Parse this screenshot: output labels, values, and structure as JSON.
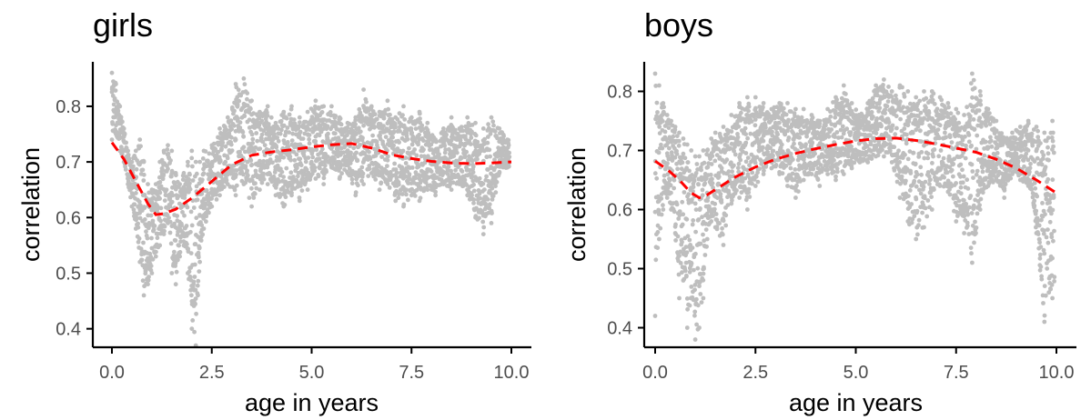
{
  "chart_data": [
    {
      "type": "scatter",
      "title": "girls",
      "xlabel": "age in years",
      "ylabel": "correlation",
      "xlim": [
        -0.5,
        10.5
      ],
      "ylim": [
        0.37,
        0.88
      ],
      "xticks": [
        "0.0",
        "2.5",
        "5.0",
        "7.5",
        "10.0"
      ],
      "xtick_values": [
        0,
        2.5,
        5,
        7.5,
        10
      ],
      "yticks": [
        "0.4",
        "0.5",
        "0.6",
        "0.7",
        "0.8"
      ],
      "ytick_values": [
        0.4,
        0.5,
        0.6,
        0.7,
        0.8
      ],
      "point_color": "#bebebe",
      "trend_color": "#ff0000",
      "trend_style": "dashed",
      "trend": {
        "x": [
          0,
          0.3,
          0.6,
          0.9,
          1.1,
          1.3,
          1.6,
          2.0,
          2.5,
          3.0,
          3.5,
          4.0,
          4.5,
          5.0,
          5.5,
          6.0,
          6.5,
          7.0,
          7.5,
          8.0,
          8.5,
          9.0,
          9.5,
          10.0
        ],
        "y": [
          0.735,
          0.705,
          0.665,
          0.625,
          0.605,
          0.607,
          0.615,
          0.635,
          0.665,
          0.695,
          0.712,
          0.718,
          0.722,
          0.727,
          0.731,
          0.733,
          0.725,
          0.713,
          0.706,
          0.701,
          0.698,
          0.697,
          0.698,
          0.7
        ]
      },
      "envelope": {
        "x": [
          0,
          0.1,
          0.2,
          0.3,
          0.4,
          0.5,
          0.6,
          0.7,
          0.8,
          0.9,
          1.0,
          1.1,
          1.2,
          1.3,
          1.4,
          1.5,
          1.6,
          1.7,
          1.8,
          1.9,
          2.0,
          2.1,
          2.2,
          2.3,
          2.5,
          2.7,
          2.9,
          3.1,
          3.3,
          3.5,
          3.7,
          3.9,
          4.1,
          4.3,
          4.5,
          4.7,
          4.9,
          5.1,
          5.3,
          5.5,
          5.7,
          5.9,
          6.1,
          6.3,
          6.5,
          6.7,
          6.9,
          7.1,
          7.3,
          7.5,
          7.7,
          7.9,
          8.1,
          8.3,
          8.5,
          8.7,
          8.9,
          9.1,
          9.3,
          9.5,
          9.7,
          9.9
        ],
        "low": [
          0.74,
          0.75,
          0.72,
          0.7,
          0.66,
          0.62,
          0.58,
          0.52,
          0.46,
          0.48,
          0.5,
          0.53,
          0.55,
          0.57,
          0.59,
          0.5,
          0.48,
          0.53,
          0.55,
          0.5,
          0.4,
          0.37,
          0.52,
          0.58,
          0.62,
          0.64,
          0.66,
          0.64,
          0.66,
          0.62,
          0.65,
          0.66,
          0.64,
          0.62,
          0.64,
          0.63,
          0.65,
          0.67,
          0.66,
          0.69,
          0.67,
          0.68,
          0.64,
          0.66,
          0.68,
          0.65,
          0.66,
          0.63,
          0.62,
          0.64,
          0.63,
          0.65,
          0.64,
          0.66,
          0.65,
          0.66,
          0.64,
          0.6,
          0.57,
          0.59,
          0.68,
          0.69
        ],
        "high": [
          0.86,
          0.84,
          0.8,
          0.76,
          0.72,
          0.7,
          0.72,
          0.74,
          0.7,
          0.66,
          0.65,
          0.66,
          0.7,
          0.72,
          0.73,
          0.72,
          0.68,
          0.66,
          0.68,
          0.7,
          0.72,
          0.7,
          0.7,
          0.72,
          0.73,
          0.76,
          0.78,
          0.84,
          0.85,
          0.81,
          0.79,
          0.8,
          0.77,
          0.79,
          0.8,
          0.78,
          0.79,
          0.81,
          0.8,
          0.8,
          0.78,
          0.77,
          0.78,
          0.83,
          0.8,
          0.79,
          0.81,
          0.78,
          0.8,
          0.78,
          0.79,
          0.77,
          0.74,
          0.76,
          0.78,
          0.76,
          0.78,
          0.77,
          0.76,
          0.78,
          0.76,
          0.74
        ]
      }
    },
    {
      "type": "scatter",
      "title": "boys",
      "xlabel": "age in years",
      "ylabel": "correlation",
      "xlim": [
        -0.5,
        10.5
      ],
      "ylim": [
        0.37,
        0.85
      ],
      "xticks": [
        "0.0",
        "2.5",
        "5.0",
        "7.5",
        "10.0"
      ],
      "xtick_values": [
        0,
        2.5,
        5,
        7.5,
        10
      ],
      "yticks": [
        "0.4",
        "0.5",
        "0.6",
        "0.7",
        "0.8"
      ],
      "ytick_values": [
        0.4,
        0.5,
        0.6,
        0.7,
        0.8
      ],
      "point_color": "#bebebe",
      "trend_color": "#ff0000",
      "trend_style": "dashed",
      "trend": {
        "x": [
          0,
          0.3,
          0.6,
          0.9,
          1.1,
          1.3,
          1.6,
          2.0,
          2.5,
          3.0,
          3.5,
          4.0,
          4.5,
          5.0,
          5.5,
          6.0,
          6.5,
          7.0,
          7.5,
          8.0,
          8.5,
          9.0,
          9.5,
          10.0
        ],
        "y": [
          0.682,
          0.668,
          0.65,
          0.628,
          0.62,
          0.625,
          0.638,
          0.655,
          0.672,
          0.685,
          0.695,
          0.703,
          0.71,
          0.716,
          0.72,
          0.721,
          0.717,
          0.711,
          0.704,
          0.697,
          0.685,
          0.67,
          0.65,
          0.628
        ]
      },
      "envelope": {
        "x": [
          0,
          0.1,
          0.2,
          0.3,
          0.4,
          0.5,
          0.6,
          0.7,
          0.8,
          0.9,
          1.0,
          1.1,
          1.2,
          1.3,
          1.4,
          1.5,
          1.7,
          1.9,
          2.1,
          2.3,
          2.5,
          2.7,
          2.9,
          3.1,
          3.3,
          3.5,
          3.7,
          3.9,
          4.1,
          4.3,
          4.5,
          4.7,
          4.9,
          5.1,
          5.3,
          5.5,
          5.7,
          5.9,
          6.1,
          6.3,
          6.5,
          6.7,
          6.9,
          7.1,
          7.3,
          7.5,
          7.7,
          7.9,
          8.1,
          8.3,
          8.5,
          8.7,
          8.9,
          9.1,
          9.3,
          9.5,
          9.7,
          9.9
        ],
        "low": [
          0.42,
          0.55,
          0.6,
          0.62,
          0.6,
          0.56,
          0.45,
          0.48,
          0.4,
          0.45,
          0.38,
          0.4,
          0.45,
          0.55,
          0.58,
          0.57,
          0.54,
          0.61,
          0.62,
          0.6,
          0.64,
          0.66,
          0.67,
          0.66,
          0.64,
          0.62,
          0.65,
          0.66,
          0.64,
          0.66,
          0.65,
          0.66,
          0.67,
          0.68,
          0.68,
          0.69,
          0.69,
          0.68,
          0.62,
          0.58,
          0.55,
          0.57,
          0.6,
          0.64,
          0.63,
          0.58,
          0.56,
          0.51,
          0.6,
          0.64,
          0.65,
          0.62,
          0.66,
          0.65,
          0.64,
          0.56,
          0.41,
          0.45
        ],
        "high": [
          0.83,
          0.81,
          0.78,
          0.76,
          0.75,
          0.74,
          0.73,
          0.72,
          0.71,
          0.7,
          0.69,
          0.69,
          0.7,
          0.7,
          0.72,
          0.73,
          0.74,
          0.76,
          0.78,
          0.79,
          0.79,
          0.78,
          0.77,
          0.78,
          0.78,
          0.77,
          0.77,
          0.76,
          0.75,
          0.77,
          0.79,
          0.81,
          0.78,
          0.76,
          0.78,
          0.81,
          0.82,
          0.8,
          0.81,
          0.8,
          0.79,
          0.8,
          0.8,
          0.79,
          0.78,
          0.77,
          0.76,
          0.83,
          0.8,
          0.77,
          0.75,
          0.72,
          0.73,
          0.74,
          0.75,
          0.74,
          0.73,
          0.75
        ]
      }
    }
  ]
}
